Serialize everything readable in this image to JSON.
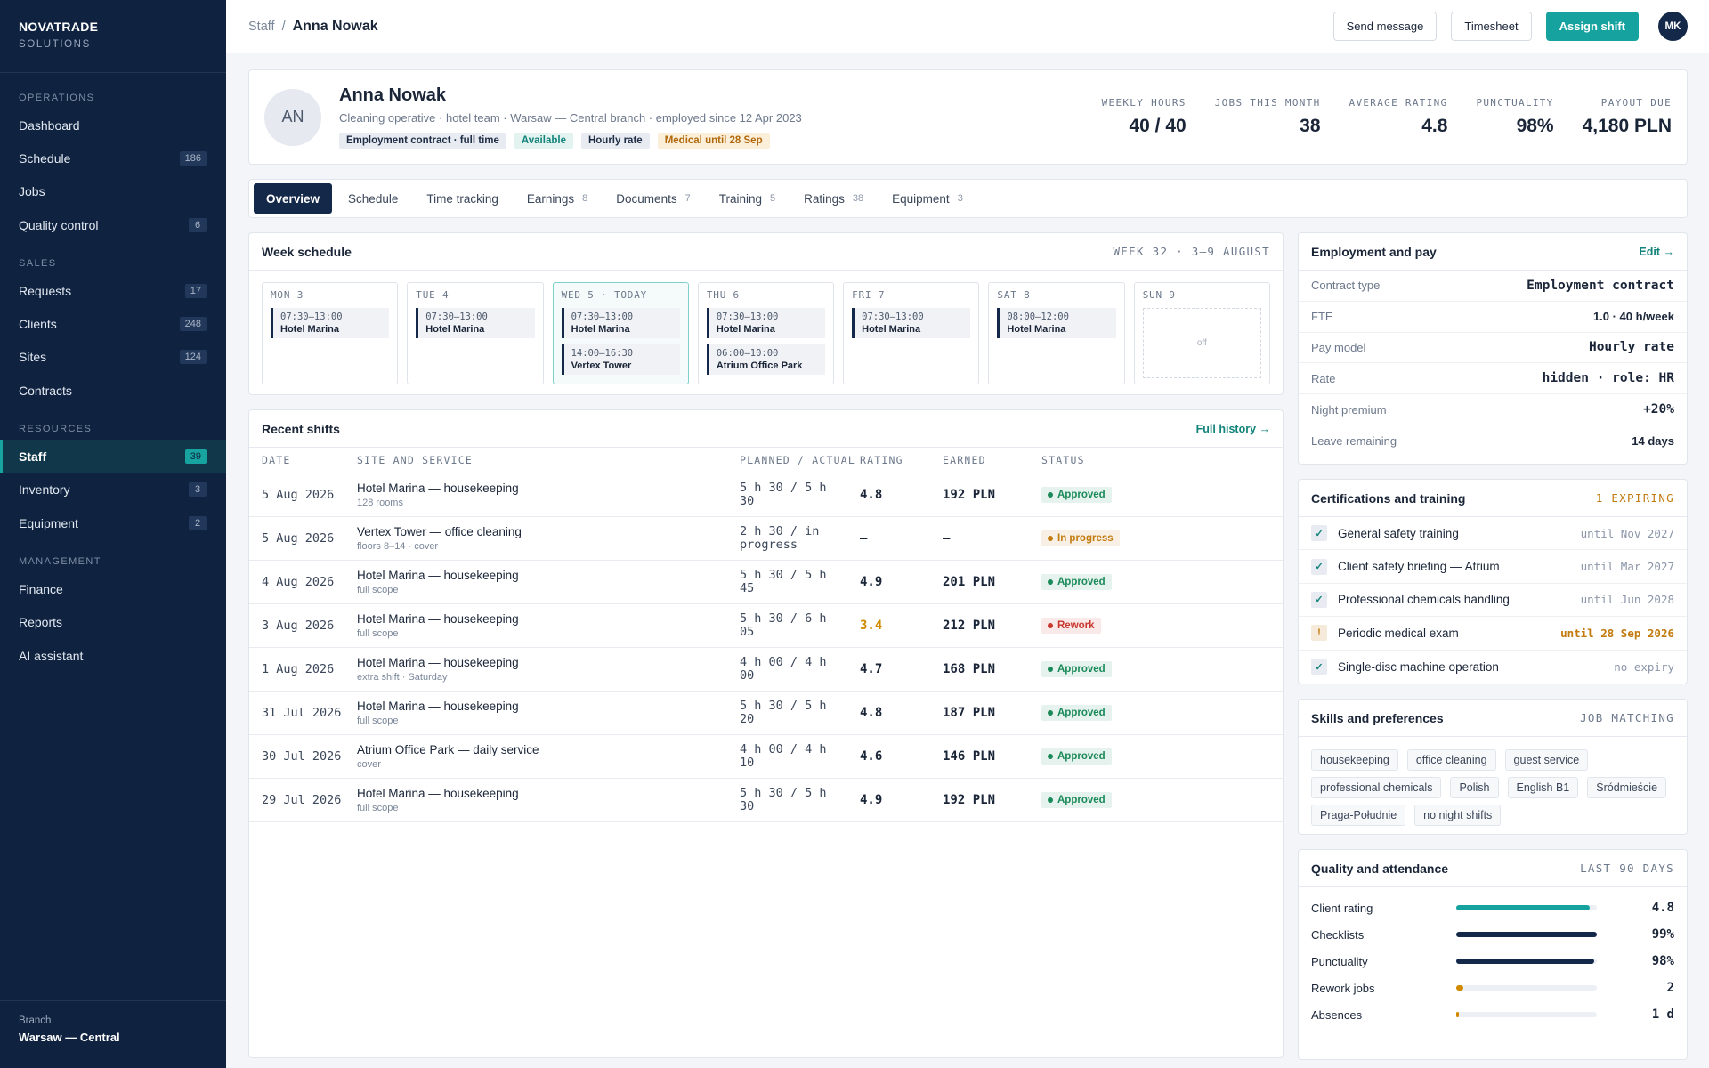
{
  "sidebar": {
    "brand": "NOVATRADE",
    "brand_sub": "SOLUTIONS",
    "sections": [
      {
        "title": "OPERATIONS",
        "items": [
          {
            "label": "Dashboard"
          },
          {
            "label": "Schedule",
            "count": 186
          },
          {
            "label": "Jobs"
          },
          {
            "label": "Quality control",
            "count": 6
          }
        ]
      },
      {
        "title": "SALES",
        "items": [
          {
            "label": "Requests",
            "count": 17
          },
          {
            "label": "Clients",
            "count": 248
          },
          {
            "label": "Sites",
            "count": 124
          },
          {
            "label": "Contracts"
          }
        ]
      },
      {
        "title": "RESOURCES",
        "items": [
          {
            "label": "Staff",
            "count": 39,
            "active": true
          },
          {
            "label": "Inventory",
            "count": 3
          },
          {
            "label": "Equipment",
            "count": 2
          }
        ]
      },
      {
        "title": "MANAGEMENT",
        "items": [
          {
            "label": "Finance"
          },
          {
            "label": "Reports"
          },
          {
            "label": "AI assistant"
          }
        ]
      }
    ],
    "footer_label": "Branch",
    "footer_value": "Warsaw — Central"
  },
  "header": {
    "breadcrumb_parent": "Staff",
    "breadcrumb_separator": "/",
    "breadcrumb_current": "Anna Nowak",
    "buttons": [
      "Send message",
      "Timesheet",
      "Assign shift"
    ],
    "avatar": "MK"
  },
  "profile": {
    "initials": "AN",
    "name": "Anna Nowak",
    "subtitle": "Cleaning operative · hotel team · Warsaw — Central branch · employed since 12 Apr 2023",
    "tags": [
      {
        "label": "Employment contract · full time",
        "color": "#1f2d44",
        "bg": "#e8ecf2"
      },
      {
        "label": "Available",
        "color": "#12837a",
        "bg": "#e2f3f0"
      },
      {
        "label": "Hourly rate",
        "color": "#1f2d44",
        "bg": "#e8ecf2"
      },
      {
        "label": "Medical until 28 Sep",
        "color": "#b0680a",
        "bg": "#fcefd9"
      }
    ],
    "stats": [
      {
        "label": "WEEKLY HOURS",
        "value": "40 / 40"
      },
      {
        "label": "JOBS THIS MONTH",
        "value": "38"
      },
      {
        "label": "AVERAGE RATING",
        "value": "4.8"
      },
      {
        "label": "PUNCTUALITY",
        "value": "98%"
      },
      {
        "label": "PAYOUT DUE",
        "value": "4,180 PLN"
      }
    ]
  },
  "tabs": [
    {
      "label": "Overview",
      "active": true
    },
    {
      "label": "Schedule"
    },
    {
      "label": "Time tracking"
    },
    {
      "label": "Earnings",
      "count": 8
    },
    {
      "label": "Documents",
      "count": 7
    },
    {
      "label": "Training",
      "count": 5
    },
    {
      "label": "Ratings",
      "count": 38
    },
    {
      "label": "Equipment",
      "count": 3
    }
  ],
  "week": {
    "title": "Week schedule",
    "range": "WEEK 32 · 3–9 AUGUST",
    "days": [
      {
        "label": "MON 3",
        "shifts": [
          {
            "time": "07:30–13:00",
            "site": "Hotel Marina"
          }
        ]
      },
      {
        "label": "TUE 4",
        "shifts": [
          {
            "time": "07:30–13:00",
            "site": "Hotel Marina"
          }
        ]
      },
      {
        "label": "WED 5 · TODAY",
        "today": true,
        "shifts": [
          {
            "time": "07:30–13:00",
            "site": "Hotel Marina"
          },
          {
            "time": "14:00–16:30",
            "site": "Vertex Tower"
          }
        ]
      },
      {
        "label": "THU 6",
        "shifts": [
          {
            "time": "07:30–13:00",
            "site": "Hotel Marina"
          },
          {
            "time": "06:00–10:00",
            "site": "Atrium Office Park"
          }
        ]
      },
      {
        "label": "FRI 7",
        "shifts": [
          {
            "time": "07:30–13:00",
            "site": "Hotel Marina"
          }
        ]
      },
      {
        "label": "SAT 8",
        "shifts": [
          {
            "time": "08:00–12:00",
            "site": "Hotel Marina"
          }
        ]
      },
      {
        "label": "SUN 9",
        "off": "off"
      }
    ]
  },
  "shifts": {
    "title": "Recent shifts",
    "link": "Full history →",
    "columns": [
      "DATE",
      "SITE AND SERVICE",
      "PLANNED / ACTUAL",
      "RATING",
      "EARNED",
      "STATUS"
    ],
    "rows": [
      {
        "date": "5 Aug 2026",
        "site": "Hotel Marina — housekeeping",
        "sub": "128 rooms",
        "hours": "5 h 30 / 5 h 30",
        "rating": "4.8",
        "earned": "192 PLN",
        "status": "Approved",
        "status_color": "#1b8a5a"
      },
      {
        "date": "5 Aug 2026",
        "site": "Vertex Tower — office cleaning",
        "sub": "floors 8–14 · cover",
        "hours": "2 h 30 / in progress",
        "rating": "—",
        "earned": "—",
        "status": "In progress",
        "status_color": "#c27a0e"
      },
      {
        "date": "4 Aug 2026",
        "site": "Hotel Marina — housekeeping",
        "sub": "full scope",
        "hours": "5 h 30 / 5 h 45",
        "rating": "4.9",
        "earned": "201 PLN",
        "status": "Approved",
        "status_color": "#1b8a5a"
      },
      {
        "date": "3 Aug 2026",
        "site": "Hotel Marina — housekeeping",
        "sub": "full scope",
        "hours": "5 h 30 / 6 h 05",
        "rating": "3.4",
        "rating_color": "#d18a00",
        "earned": "212 PLN",
        "status": "Rework",
        "status_color": "#c8382f"
      },
      {
        "date": "1 Aug 2026",
        "site": "Hotel Marina — housekeeping",
        "sub": "extra shift · Saturday",
        "hours": "4 h 00 / 4 h 00",
        "rating": "4.7",
        "earned": "168 PLN",
        "status": "Approved",
        "status_color": "#1b8a5a"
      },
      {
        "date": "31 Jul 2026",
        "site": "Hotel Marina — housekeeping",
        "sub": "full scope",
        "hours": "5 h 30 / 5 h 20",
        "rating": "4.8",
        "earned": "187 PLN",
        "status": "Approved",
        "status_color": "#1b8a5a"
      },
      {
        "date": "30 Jul 2026",
        "site": "Atrium Office Park — daily service",
        "sub": "cover",
        "hours": "4 h 00 / 4 h 10",
        "rating": "4.6",
        "earned": "146 PLN",
        "status": "Approved",
        "status_color": "#1b8a5a"
      },
      {
        "date": "29 Jul 2026",
        "site": "Hotel Marina — housekeeping",
        "sub": "full scope",
        "hours": "5 h 30 / 5 h 30",
        "rating": "4.9",
        "earned": "192 PLN",
        "status": "Approved",
        "status_color": "#1b8a5a"
      }
    ]
  },
  "employment": {
    "title": "Employment and pay",
    "edit": "Edit →",
    "rows": [
      {
        "label": "Contract type",
        "value": "Employment contract"
      },
      {
        "label": "FTE",
        "value": "1.0 · 40 h/week"
      },
      {
        "label": "Pay model",
        "value": "Hourly rate"
      },
      {
        "label": "Rate",
        "value": "hidden · role: HR"
      },
      {
        "label": "Night premium",
        "value": "+20%"
      },
      {
        "label": "Leave remaining",
        "value": "14 days"
      }
    ]
  },
  "certifications": {
    "title": "Certifications and training",
    "badge": "1 EXPIRING",
    "items": [
      {
        "icon": "✓",
        "label": "General safety training",
        "until": "until Nov 2027"
      },
      {
        "icon": "✓",
        "label": "Client safety briefing — Atrium",
        "until": "until Mar 2027"
      },
      {
        "icon": "✓",
        "label": "Professional chemicals handling",
        "until": "until Jun 2028"
      },
      {
        "icon": "!",
        "label": "Periodic medical exam",
        "until": "until 28 Sep 2026",
        "color": "#c27a0e"
      },
      {
        "icon": "✓",
        "label": "Single-disc machine operation",
        "until": "no expiry"
      }
    ]
  },
  "skills": {
    "title": "Skills and preferences",
    "badge": "JOB MATCHING",
    "tags": [
      "housekeeping",
      "office cleaning",
      "guest service",
      "professional chemicals",
      "Polish",
      "English B1",
      "Śródmieście",
      "Praga-Południe",
      "no night shifts"
    ]
  },
  "quality": {
    "title": "Quality and attendance",
    "badge": "LAST 90 DAYS",
    "rows": [
      {
        "label": "Client rating",
        "value": "4.8",
        "color": "#16a3a0"
      },
      {
        "label": "Checklists",
        "value": "99%",
        "color": "#14284a"
      },
      {
        "label": "Punctuality",
        "value": "98%",
        "color": "#14284a"
      },
      {
        "label": "Rework jobs",
        "value": "2",
        "color": "#d18a00"
      },
      {
        "label": "Absences",
        "value": "1 d",
        "color": "#d18a00"
      }
    ]
  }
}
